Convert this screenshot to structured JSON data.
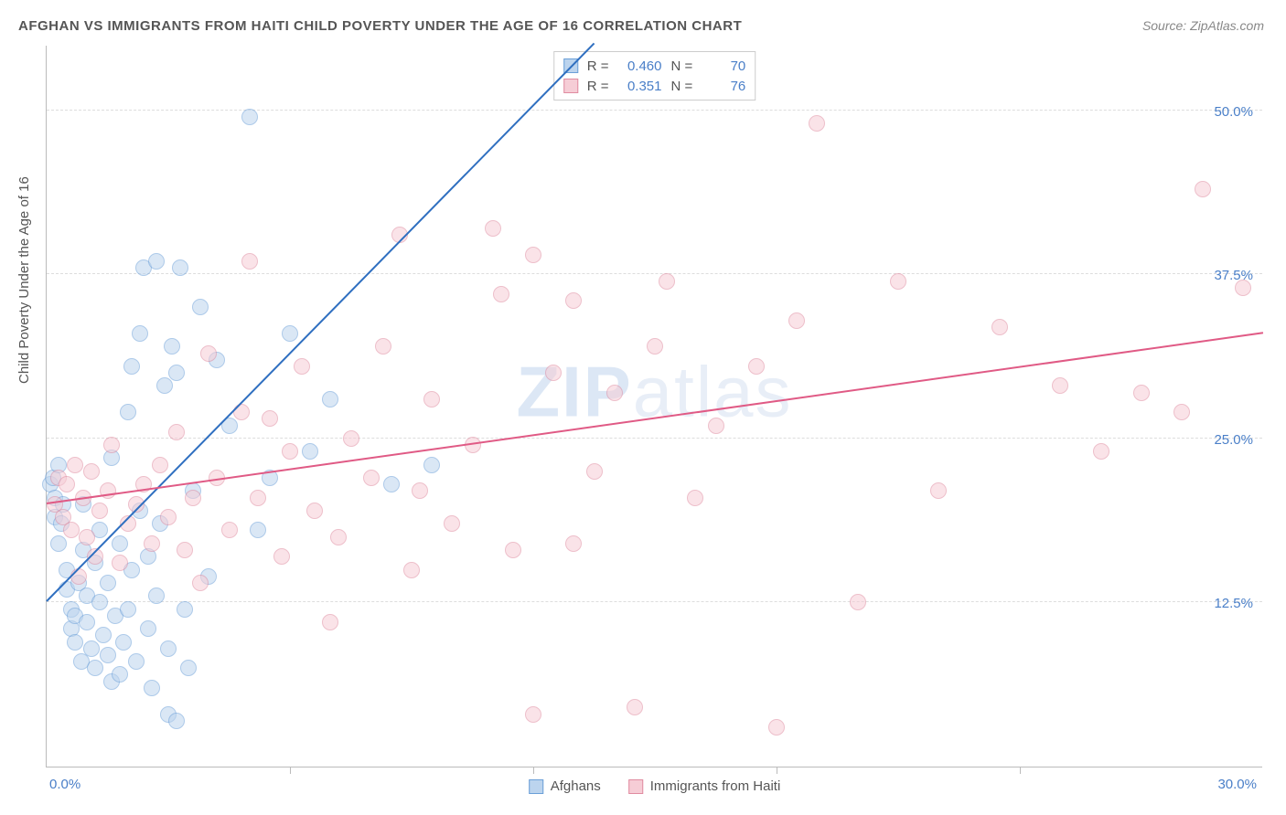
{
  "title": "AFGHAN VS IMMIGRANTS FROM HAITI CHILD POVERTY UNDER THE AGE OF 16 CORRELATION CHART",
  "source": "Source: ZipAtlas.com",
  "watermark": "ZIPatlas",
  "ylabel": "Child Poverty Under the Age of 16",
  "chart": {
    "type": "scatter",
    "xlim": [
      0,
      30
    ],
    "ylim": [
      0,
      55
    ],
    "x_tick_step": 6,
    "y_gridlines": [
      12.5,
      25.0,
      37.5,
      50.0
    ],
    "y_tick_labels": [
      "12.5%",
      "25.0%",
      "37.5%",
      "50.0%"
    ],
    "x_min_label": "0.0%",
    "x_max_label": "30.0%",
    "background_color": "#ffffff",
    "grid_color": "#dddddd",
    "axis_color": "#bbbbbb",
    "label_color": "#4a7fc8",
    "marker_radius": 9,
    "marker_opacity": 0.55,
    "series": [
      {
        "name": "Afghans",
        "color_fill": "#bcd4ee",
        "color_stroke": "#6b9fd8",
        "R": "0.460",
        "N": "70",
        "trend": {
          "x1": 0,
          "y1": 12.5,
          "x2": 13.5,
          "y2": 55,
          "color": "#2f6fc0",
          "width": 2
        },
        "points": [
          [
            0.1,
            21.5
          ],
          [
            0.2,
            19
          ],
          [
            0.2,
            20.5
          ],
          [
            0.15,
            22
          ],
          [
            0.3,
            17
          ],
          [
            0.3,
            23
          ],
          [
            0.4,
            20
          ],
          [
            0.35,
            18.5
          ],
          [
            0.5,
            15
          ],
          [
            0.5,
            13.5
          ],
          [
            0.6,
            12
          ],
          [
            0.6,
            10.5
          ],
          [
            0.7,
            11.5
          ],
          [
            0.7,
            9.5
          ],
          [
            0.8,
            14
          ],
          [
            0.85,
            8
          ],
          [
            0.9,
            16.5
          ],
          [
            0.9,
            20
          ],
          [
            1.0,
            13
          ],
          [
            1.0,
            11
          ],
          [
            1.1,
            9
          ],
          [
            1.2,
            7.5
          ],
          [
            1.2,
            15.5
          ],
          [
            1.3,
            18
          ],
          [
            1.3,
            12.5
          ],
          [
            1.4,
            10
          ],
          [
            1.5,
            8.5
          ],
          [
            1.5,
            14
          ],
          [
            1.6,
            6.5
          ],
          [
            1.6,
            23.5
          ],
          [
            1.7,
            11.5
          ],
          [
            1.8,
            7
          ],
          [
            1.8,
            17
          ],
          [
            1.9,
            9.5
          ],
          [
            2.0,
            12
          ],
          [
            2.0,
            27
          ],
          [
            2.1,
            30.5
          ],
          [
            2.1,
            15
          ],
          [
            2.2,
            8
          ],
          [
            2.3,
            19.5
          ],
          [
            2.3,
            33
          ],
          [
            2.4,
            38
          ],
          [
            2.5,
            16
          ],
          [
            2.5,
            10.5
          ],
          [
            2.6,
            6
          ],
          [
            2.7,
            38.5
          ],
          [
            2.7,
            13
          ],
          [
            2.8,
            18.5
          ],
          [
            2.9,
            29
          ],
          [
            3.0,
            9
          ],
          [
            3.0,
            4
          ],
          [
            3.1,
            32
          ],
          [
            3.2,
            30
          ],
          [
            3.2,
            3.5
          ],
          [
            3.3,
            38
          ],
          [
            3.4,
            12
          ],
          [
            3.5,
            7.5
          ],
          [
            3.6,
            21
          ],
          [
            3.8,
            35
          ],
          [
            4.0,
            14.5
          ],
          [
            4.2,
            31
          ],
          [
            4.5,
            26
          ],
          [
            5.0,
            49.5
          ],
          [
            5.2,
            18
          ],
          [
            5.5,
            22
          ],
          [
            6.0,
            33
          ],
          [
            6.5,
            24
          ],
          [
            7.0,
            28
          ],
          [
            8.5,
            21.5
          ],
          [
            9.5,
            23
          ]
        ]
      },
      {
        "name": "Immigrants from Haiti",
        "color_fill": "#f6cdd6",
        "color_stroke": "#e08ba0",
        "R": "0.351",
        "N": "76",
        "trend": {
          "x1": 0,
          "y1": 20,
          "x2": 30,
          "y2": 33,
          "color": "#e05a85",
          "width": 2
        },
        "points": [
          [
            0.2,
            20
          ],
          [
            0.3,
            22
          ],
          [
            0.4,
            19
          ],
          [
            0.5,
            21.5
          ],
          [
            0.6,
            18
          ],
          [
            0.7,
            23
          ],
          [
            0.8,
            14.5
          ],
          [
            0.9,
            20.5
          ],
          [
            1.0,
            17.5
          ],
          [
            1.1,
            22.5
          ],
          [
            1.2,
            16
          ],
          [
            1.3,
            19.5
          ],
          [
            1.5,
            21
          ],
          [
            1.6,
            24.5
          ],
          [
            1.8,
            15.5
          ],
          [
            2.0,
            18.5
          ],
          [
            2.2,
            20
          ],
          [
            2.4,
            21.5
          ],
          [
            2.6,
            17
          ],
          [
            2.8,
            23
          ],
          [
            3.0,
            19
          ],
          [
            3.2,
            25.5
          ],
          [
            3.4,
            16.5
          ],
          [
            3.6,
            20.5
          ],
          [
            3.8,
            14
          ],
          [
            4.0,
            31.5
          ],
          [
            4.2,
            22
          ],
          [
            4.5,
            18
          ],
          [
            4.8,
            27
          ],
          [
            5.0,
            38.5
          ],
          [
            5.2,
            20.5
          ],
          [
            5.5,
            26.5
          ],
          [
            5.8,
            16
          ],
          [
            6.0,
            24
          ],
          [
            6.3,
            30.5
          ],
          [
            6.6,
            19.5
          ],
          [
            7.0,
            11
          ],
          [
            7.2,
            17.5
          ],
          [
            7.5,
            25
          ],
          [
            8.0,
            22
          ],
          [
            8.3,
            32
          ],
          [
            8.7,
            40.5
          ],
          [
            9.0,
            15
          ],
          [
            9.2,
            21
          ],
          [
            9.5,
            28
          ],
          [
            10.0,
            18.5
          ],
          [
            10.5,
            24.5
          ],
          [
            11.0,
            41
          ],
          [
            11.2,
            36
          ],
          [
            11.5,
            16.5
          ],
          [
            12.0,
            4
          ],
          [
            12.0,
            39
          ],
          [
            12.5,
            30
          ],
          [
            13.0,
            17
          ],
          [
            13.0,
            35.5
          ],
          [
            13.5,
            22.5
          ],
          [
            14.0,
            28.5
          ],
          [
            14.5,
            4.5
          ],
          [
            15.0,
            32
          ],
          [
            15.3,
            37
          ],
          [
            16.0,
            20.5
          ],
          [
            16.5,
            26
          ],
          [
            17.5,
            30.5
          ],
          [
            18.0,
            3
          ],
          [
            18.5,
            34
          ],
          [
            19.0,
            49
          ],
          [
            20.0,
            12.5
          ],
          [
            21.0,
            37
          ],
          [
            22.0,
            21
          ],
          [
            23.5,
            33.5
          ],
          [
            25.0,
            29
          ],
          [
            26.0,
            24
          ],
          [
            27.0,
            28.5
          ],
          [
            28.0,
            27
          ],
          [
            28.5,
            44
          ],
          [
            29.5,
            36.5
          ]
        ]
      }
    ]
  },
  "legend": {
    "series1": "Afghans",
    "series2": "Immigrants from Haiti"
  }
}
